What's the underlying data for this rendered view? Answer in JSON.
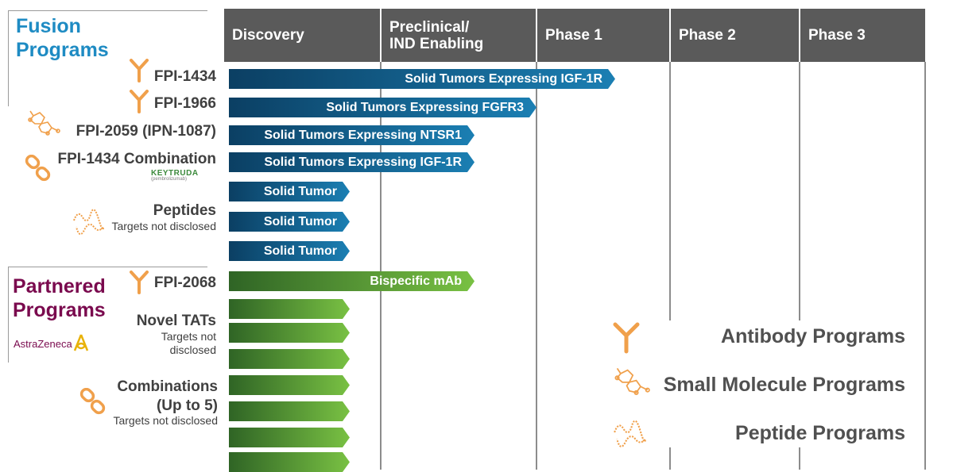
{
  "header": {
    "columns": [
      "Discovery",
      "Preclinical/\nIND Enabling",
      "Phase 1",
      "Phase 2",
      "Phase 3"
    ]
  },
  "sections": {
    "fusion_title": "Fusion\nPrograms",
    "partnered_title": "Partnered\nPrograms"
  },
  "programs": {
    "fpi1434": "FPI-1434",
    "fpi1966": "FPI-1966",
    "fpi2059": "FPI-2059 (IPN-1087)",
    "fpi1434_combo": "FPI-1434 Combination",
    "keytruda_logo": "KEYTRUDA",
    "keytruda_sub": "(pembrolizumab)",
    "peptides": "Peptides",
    "peptides_sub": "Targets not disclosed",
    "fpi2068": "FPI-2068",
    "novel_tats": "Novel TATs",
    "novel_tats_sub": "Targets not\ndisclosed",
    "astrazeneca_logo": "AstraZeneca",
    "combinations": "Combinations\n(Up to 5)",
    "combinations_sub": "Targets not disclosed"
  },
  "bars": {
    "b1": "Solid Tumors Expressing IGF-1R",
    "b2": "Solid Tumors Expressing FGFR3",
    "b3": "Solid Tumors Expressing NTSR1",
    "b4": "Solid Tumors Expressing IGF-1R",
    "b5": "Solid Tumor",
    "b6": "Solid Tumor",
    "b7": "Solid Tumor",
    "b8": "Bispecific mAb"
  },
  "legend": {
    "antibody": "Antibody Programs",
    "small_molecule": "Small Molecule Programs",
    "peptide": "Peptide Programs"
  },
  "colors": {
    "fusion_title": "#1e8bc3",
    "partnered_title": "#7a0a4e",
    "icon_orange": "#f0a04b",
    "header_bg": "#5a5a5a",
    "bar_blue": "#1b7fb3",
    "bar_green": "#79c143"
  }
}
